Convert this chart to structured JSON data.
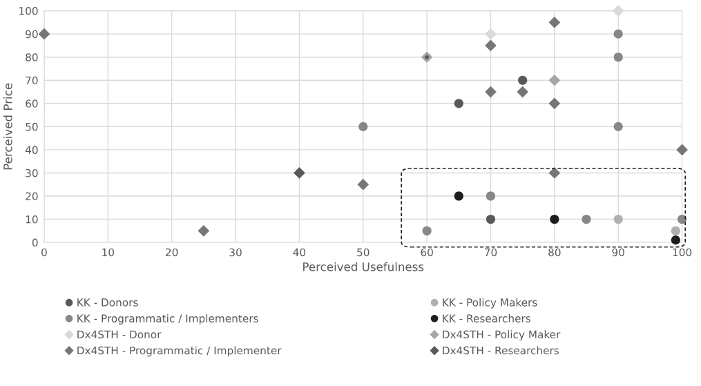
{
  "chart_data": {
    "type": "scatter",
    "xlabel": "Perceived Usefulness",
    "ylabel": "Perceived Price",
    "xlim": [
      0,
      100
    ],
    "ylim": [
      0,
      100
    ],
    "xticks": [
      0,
      10,
      20,
      30,
      40,
      50,
      60,
      70,
      80,
      90,
      100
    ],
    "yticks": [
      0,
      10,
      20,
      30,
      40,
      50,
      60,
      70,
      80,
      90,
      100
    ],
    "grid": true,
    "legend": "bottom",
    "series": [
      {
        "name": "KK - Donors",
        "color": "#595959",
        "marker": "circle",
        "x": [
          65,
          75,
          70
        ],
        "values": [
          60,
          70,
          10
        ]
      },
      {
        "name": "KK - Policy Makers",
        "color": "#b0b0b0",
        "marker": "circle",
        "x": [
          90,
          99
        ],
        "values": [
          10,
          5
        ]
      },
      {
        "name": "KK - Programmatic / Implementers",
        "color": "#878787",
        "marker": "circle",
        "x": [
          90,
          90,
          90,
          50,
          70,
          60,
          85,
          100
        ],
        "values": [
          90,
          80,
          50,
          50,
          20,
          5,
          10,
          10
        ]
      },
      {
        "name": "KK - Researchers",
        "color": "#1e1e1e",
        "marker": "circle",
        "x": [
          65,
          80,
          99
        ],
        "values": [
          20,
          10,
          1
        ]
      },
      {
        "name": "Dx4STH - Donor",
        "color": "#d9d9d9",
        "marker": "diamond",
        "x": [
          90,
          70
        ],
        "values": [
          100,
          90
        ]
      },
      {
        "name": "Dx4STH - Policy Maker",
        "color": "#a6a6a6",
        "marker": "diamond",
        "x": [
          80,
          60
        ],
        "values": [
          70,
          80
        ]
      },
      {
        "name": "Dx4STH - Programmatic / Implementer",
        "color": "#767676",
        "marker": "diamond",
        "x": [
          0,
          25,
          50,
          70,
          70,
          75,
          80,
          80,
          80,
          100
        ],
        "values": [
          90,
          5,
          25,
          85,
          65,
          65,
          95,
          60,
          30,
          40
        ]
      },
      {
        "name": "Dx4STH - Researchers",
        "color": "#595959",
        "marker": "diamond",
        "x": [
          40,
          60
        ],
        "values": [
          30,
          80
        ]
      }
    ]
  }
}
